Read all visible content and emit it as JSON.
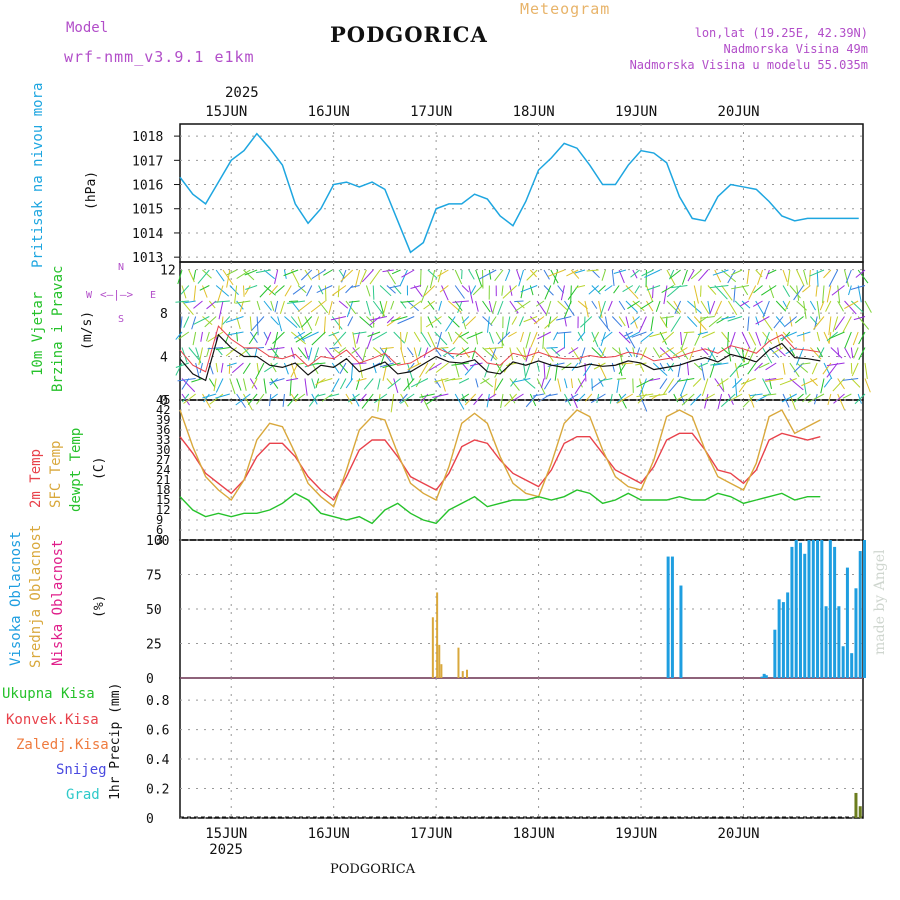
{
  "header": {
    "model_label": "Model",
    "model_name": "wrf-nmm_v3.9.1 e1km",
    "station": "PODGORICA",
    "meteogram": "Meteogram",
    "lonlat": "lon,lat (19.25E, 42.39N)",
    "height": "Nadmorska Visina 49m",
    "height_model": "Nadmorska Visina u modelu 55.035m",
    "year_top": "2025",
    "footer_station": "PODGORICA",
    "watermark": "made by Angel"
  },
  "colors": {
    "pressure": "#1ea6e0",
    "temp2m": "#e8424b",
    "sfc_temp": "#d9a83c",
    "dewpt": "#26c22b",
    "high_cloud": "#1e9ee0",
    "mid_cloud": "#d9a83c",
    "low_cloud": "#e01e8a",
    "precip": "#6b7d1e"
  },
  "days": [
    "15JUN",
    "16JUN",
    "17JUN",
    "18JUN",
    "19JUN",
    "20JUN"
  ],
  "year_bottom": "2025",
  "panels": {
    "pressure": {
      "labels": [
        "Pritisak na nivou mora",
        "(hPa)"
      ],
      "yticks": [
        1013,
        1014,
        1015,
        1016,
        1017,
        1018
      ]
    },
    "wind": {
      "labels": [
        "10m Vjetar",
        "Brzina i Pravac",
        "(m/s)"
      ],
      "compass": {
        "n": "N",
        "s": "S",
        "e": "E",
        "w": "W"
      },
      "yticks": [
        0,
        4,
        8,
        12
      ]
    },
    "temp": {
      "labels": [
        "2m Temp",
        "SFC Temp",
        "dewpt Temp",
        "(C)"
      ],
      "yticks": [
        3,
        6,
        9,
        12,
        15,
        18,
        21,
        24,
        27,
        30,
        33,
        36,
        39,
        42,
        45
      ]
    },
    "cloud": {
      "labels": [
        "Visoka Oblacnost",
        "Srednja Oblacnost",
        "Niska Oblacnost",
        "(%)"
      ],
      "yticks": [
        0,
        25,
        50,
        75,
        100
      ]
    },
    "precip": {
      "legend": [
        "Ukupna Kisa",
        "Konvek.Kisa",
        "Zaledj.Kisa",
        "Snijeg",
        "Grad"
      ],
      "ylabel": "1hr Precip (mm)",
      "yticks": [
        0,
        0.2,
        0.4,
        0.6,
        0.8
      ]
    }
  },
  "chart_data": [
    {
      "type": "line",
      "title": "Pritisak na nivou mora",
      "ylabel": "(hPa)",
      "ylim": [
        1012.8,
        1018.5
      ],
      "x": [
        0,
        3,
        6,
        9,
        12,
        15,
        18,
        21,
        24,
        27,
        30,
        33,
        36,
        39,
        42,
        45,
        48,
        51,
        54,
        57,
        60,
        63,
        66,
        69,
        72,
        75,
        78,
        81,
        84,
        87,
        90,
        93,
        96,
        99,
        102,
        105,
        108,
        111,
        114,
        117,
        120,
        123,
        126,
        129,
        132,
        135,
        138,
        141,
        144,
        147,
        150,
        153,
        156,
        159
      ],
      "y": [
        1016.3,
        1015.6,
        1015.2,
        1016.1,
        1017.0,
        1017.4,
        1018.1,
        1017.5,
        1016.8,
        1015.2,
        1014.4,
        1015.0,
        1016.0,
        1016.1,
        1015.9,
        1016.1,
        1015.8,
        1014.5,
        1013.2,
        1013.6,
        1015.0,
        1015.2,
        1015.2,
        1015.6,
        1015.4,
        1014.7,
        1014.3,
        1015.3,
        1016.6,
        1017.1,
        1017.7,
        1017.5,
        1016.8,
        1016.0,
        1016.0,
        1016.8,
        1017.4,
        1017.3,
        1016.9,
        1015.5,
        1014.6,
        1014.5,
        1015.5,
        1016.0,
        1015.9,
        1015.8,
        1015.3,
        1014.7,
        1014.5,
        1014.6,
        1014.6,
        1014.6,
        1014.6,
        1014.6
      ],
      "series": [
        {
          "name": "Pritisak na nivou mora"
        }
      ]
    },
    {
      "type": "line",
      "title": "10m Vjetar Brzina i Pravac",
      "ylabel": "(m/s)",
      "ylim": [
        0,
        12.7
      ],
      "x": [
        0,
        3,
        6,
        9,
        12,
        15,
        18,
        21,
        24,
        27,
        30,
        33,
        36,
        39,
        42,
        45,
        48,
        51,
        54,
        57,
        60,
        63,
        66,
        69,
        72,
        75,
        78,
        81,
        84,
        87,
        90,
        93,
        96,
        99,
        102,
        105,
        108,
        111,
        114,
        117,
        120,
        123,
        126,
        129,
        132,
        135,
        138,
        141,
        144,
        147,
        150
      ],
      "y": [
        3.8,
        2.4,
        1.8,
        6.0,
        4.8,
        4.0,
        4.0,
        3.2,
        3.0,
        3.4,
        2.3,
        3.2,
        3.0,
        3.8,
        2.6,
        3.0,
        3.5,
        2.4,
        2.6,
        3.3,
        4.0,
        3.5,
        3.4,
        3.7,
        2.6,
        2.4,
        3.5,
        3.2,
        3.6,
        3.2,
        3.0,
        3.0,
        3.3,
        3.1,
        3.2,
        3.6,
        3.4,
        2.8,
        3.0,
        3.2,
        3.6,
        3.9,
        3.5,
        4.2,
        3.9,
        3.5,
        4.6,
        5.2,
        3.9,
        3.8,
        3.6
      ],
      "series": [
        {
          "name": "10m Vjetar"
        }
      ]
    },
    {
      "type": "line",
      "title": "2m Temp / SFC Temp / dewpt Temp",
      "ylabel": "(C)",
      "ylim": [
        3,
        45
      ],
      "x": [
        0,
        3,
        6,
        9,
        12,
        15,
        18,
        21,
        24,
        27,
        30,
        33,
        36,
        39,
        42,
        45,
        48,
        51,
        54,
        57,
        60,
        63,
        66,
        69,
        72,
        75,
        78,
        81,
        84,
        87,
        90,
        93,
        96,
        99,
        102,
        105,
        108,
        111,
        114,
        117,
        120,
        123,
        126,
        129,
        132,
        135,
        138,
        141,
        144,
        147,
        150
      ],
      "series": [
        {
          "name": "2m Temp",
          "values": [
            34,
            29,
            23,
            20,
            17,
            21,
            28,
            32,
            32,
            28,
            22,
            18,
            15,
            22,
            30,
            33,
            33,
            28,
            22,
            20,
            18,
            23,
            31,
            33,
            32,
            27,
            23,
            21,
            19,
            24,
            32,
            34,
            34,
            29,
            24,
            22,
            20,
            25,
            33,
            35,
            35,
            30,
            24,
            23,
            20,
            24,
            33,
            35,
            34,
            33,
            34
          ]
        },
        {
          "name": "SFC Temp",
          "values": [
            42,
            31,
            22,
            18,
            15,
            21,
            33,
            38,
            37,
            29,
            20,
            16,
            13,
            24,
            36,
            40,
            39,
            29,
            20,
            17,
            15,
            25,
            38,
            41,
            38,
            28,
            20,
            17,
            16,
            26,
            38,
            42,
            40,
            30,
            22,
            19,
            18,
            27,
            40,
            42,
            40,
            30,
            22,
            20,
            18,
            26,
            40,
            42,
            35,
            37,
            39
          ]
        },
        {
          "name": "dewpt Temp",
          "values": [
            16,
            12,
            10,
            11,
            10,
            11,
            11,
            12,
            14,
            17,
            15,
            11,
            10,
            9,
            10,
            8,
            12,
            14,
            11,
            9,
            8,
            12,
            14,
            16,
            13,
            14,
            15,
            15,
            16,
            15,
            16,
            18,
            17,
            14,
            15,
            17,
            15,
            15,
            15,
            16,
            15,
            15,
            17,
            16,
            14,
            15,
            16,
            17,
            15,
            16,
            16
          ]
        }
      ]
    },
    {
      "type": "bar",
      "title": "Oblacnost",
      "ylabel": "(%)",
      "ylim": [
        0,
        100
      ],
      "series": [
        {
          "name": "Visoka Oblacnost",
          "x": [
            114,
            115,
            117,
            136,
            136.5,
            137,
            139,
            140,
            141,
            142,
            143,
            144,
            145,
            146,
            147,
            148,
            149,
            150,
            151,
            152,
            153,
            154,
            155,
            156,
            157,
            158,
            159,
            160
          ],
          "values": [
            88,
            88,
            67,
            1,
            3,
            2,
            35,
            57,
            55,
            62,
            95,
            100,
            98,
            90,
            100,
            100,
            100,
            100,
            52,
            100,
            95,
            52,
            23,
            80,
            18,
            65,
            92,
            100
          ]
        },
        {
          "name": "Srednja Oblacnost",
          "x": [
            59,
            60,
            60.5,
            61,
            65,
            66,
            67
          ],
          "values": [
            44,
            62,
            24,
            10,
            22,
            5,
            6
          ]
        },
        {
          "name": "Niska Oblacnost",
          "x": [],
          "values": []
        }
      ]
    },
    {
      "type": "bar",
      "title": "1hr Precip",
      "ylabel": "1hr Precip (mm)",
      "ylim": [
        0,
        0.95
      ],
      "series": [
        {
          "name": "Ukupna Kisa",
          "x": [
            158,
            159
          ],
          "values": [
            0.17,
            0.08
          ]
        },
        {
          "name": "Konvek.Kisa",
          "x": [],
          "values": []
        },
        {
          "name": "Zaledj.Kisa",
          "x": [],
          "values": []
        },
        {
          "name": "Snijeg",
          "x": [],
          "values": []
        },
        {
          "name": "Grad",
          "x": [],
          "values": []
        }
      ]
    }
  ]
}
